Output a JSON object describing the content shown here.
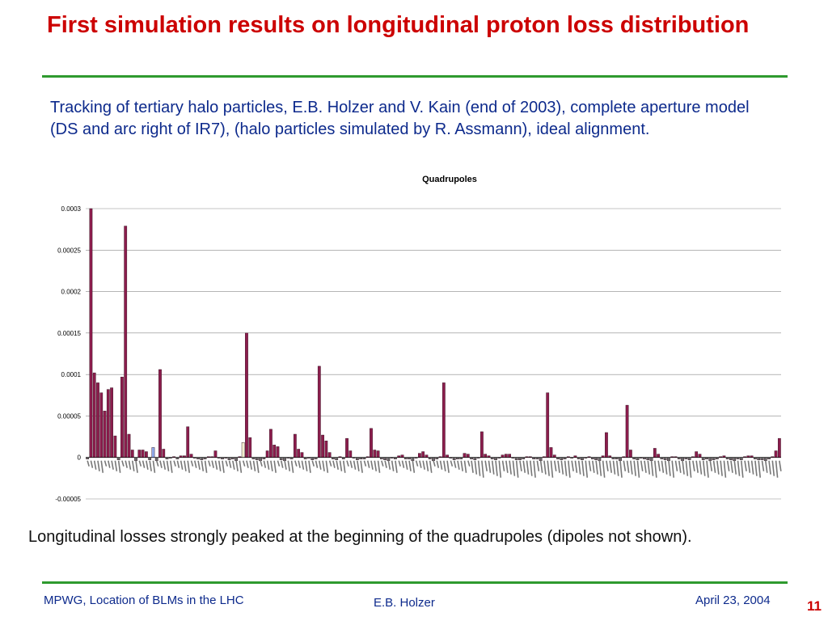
{
  "slide": {
    "title": "First simulation results on longitudinal proton loss distribution",
    "subtitle": "Tracking of tertiary halo particles, E.B. Holzer and V. Kain (end of 2003), complete aperture model (DS and arc right of IR7), (halo particles simulated by R. Assmann), ideal alignment.",
    "caption": "Longitudinal losses strongly peaked at the beginning of the quadrupoles (dipoles not shown).",
    "footer_left": "MPWG, Location of BLMs in the LHC",
    "footer_center": "E.B. Holzer",
    "footer_right": "April 23, 2004",
    "page_number": "11"
  },
  "colors": {
    "title": "#cc0000",
    "text": "#0d2a8c",
    "rule": "#2e9a2e",
    "bar_main": "#8c1d4d",
    "bar_blue": "#8fa8e8",
    "bar_cream": "#f2efcf",
    "bar_neg": "#6b6b6b"
  },
  "chart_data": {
    "type": "bar",
    "title": "Quadrupoles",
    "xlabel": "",
    "ylabel": "",
    "ylim": [
      -5e-05,
      0.0003
    ],
    "yticks": [
      -5e-05,
      0,
      5e-05,
      0.0001,
      0.00015,
      0.0002,
      0.00025,
      0.0003
    ],
    "ytick_labels": [
      "-0.00005",
      "0",
      "0.00005",
      "0.0001",
      "0.00015",
      "0.0002",
      "0.00025",
      "0.0003"
    ],
    "grid": true,
    "legend": "none",
    "xtick_labels": "illegible",
    "values": [
      -2e-06,
      0.0003,
      0.000102,
      9e-05,
      7.8e-05,
      5.6e-05,
      8.2e-05,
      8.4e-05,
      2.6e-05,
      -3e-06,
      9.7e-05,
      0.000279,
      2.8e-05,
      9e-06,
      -4e-06,
      9e-06,
      9e-06,
      7e-06,
      -3e-06,
      1.2e-05,
      -4e-06,
      0.000106,
      1e-05,
      -2e-06,
      -1e-06,
      1e-06,
      -2e-06,
      2e-06,
      2e-06,
      3.7e-05,
      4e-06,
      -1e-06,
      -2e-06,
      -3e-06,
      -2e-06,
      1e-06,
      1e-06,
      8e-06,
      -1e-06,
      -2e-06,
      -1e-06,
      -3e-06,
      -2e-06,
      -4e-06,
      1e-06,
      1.8e-05,
      0.00015,
      2.4e-05,
      -2e-06,
      -3e-06,
      -4e-06,
      -2e-06,
      8e-06,
      3.4e-05,
      1.5e-05,
      1.3e-05,
      -3e-06,
      -4e-06,
      -1e-06,
      -2e-06,
      2.8e-05,
      1e-05,
      6e-06,
      -2e-06,
      -1e-06,
      -3e-06,
      -2e-06,
      0.00011,
      2.7e-05,
      2e-05,
      6e-06,
      -2e-06,
      -3e-06,
      1e-06,
      -2e-06,
      2.3e-05,
      8e-06,
      -1e-06,
      -3e-06,
      -2e-06,
      -2e-06,
      1e-06,
      3.5e-05,
      9e-06,
      8e-06,
      -2e-06,
      -3e-06,
      -4e-06,
      -1e-06,
      -2e-06,
      2e-06,
      3e-06,
      -2e-06,
      -2e-06,
      -4e-06,
      -1e-06,
      5e-06,
      7e-06,
      3e-06,
      -2e-06,
      -4e-06,
      -2e-06,
      1e-06,
      9e-05,
      3e-06,
      -1e-06,
      -3e-06,
      -2e-06,
      -2e-06,
      5e-06,
      4e-06,
      -2e-06,
      -3e-06,
      -1e-06,
      3.1e-05,
      4e-06,
      2e-06,
      -2e-06,
      -3e-06,
      -1e-06,
      3e-06,
      4e-06,
      4e-06,
      -1e-06,
      -3e-06,
      -3e-06,
      -2e-06,
      1e-06,
      1e-06,
      -2e-06,
      -2e-06,
      -4e-06,
      1e-06,
      7.8e-05,
      1.2e-05,
      3e-06,
      -2e-06,
      -3e-06,
      -2e-06,
      1e-06,
      -1e-06,
      2e-06,
      -2e-06,
      -3e-06,
      -1e-06,
      1e-06,
      -2e-06,
      -3e-06,
      -4e-06,
      2e-06,
      3e-05,
      2e-06,
      -2e-06,
      -2e-06,
      -4e-06,
      1e-06,
      6.3e-05,
      9e-06,
      -2e-06,
      -3e-06,
      -1e-06,
      -2e-06,
      -3e-06,
      -4e-06,
      1.1e-05,
      4e-06,
      -2e-06,
      -3e-06,
      -4e-06,
      1e-06,
      1e-06,
      -2e-06,
      -4e-06,
      -2e-06,
      -3e-06,
      1e-06,
      7e-06,
      4e-06,
      -3e-06,
      -2e-06,
      -4e-06,
      -3e-06,
      -2e-06,
      1e-06,
      2e-06,
      -2e-06,
      -3e-06,
      -4e-06,
      -2e-06,
      -3e-06,
      1e-06,
      2e-06,
      2e-06,
      -2e-06,
      -3e-06,
      -3e-06,
      -4e-06,
      -2e-06,
      1e-06,
      8e-06,
      2.3e-05
    ],
    "highlight": [
      {
        "index": 19,
        "color_key": "bar_blue"
      },
      {
        "index": 45,
        "color_key": "bar_cream"
      }
    ]
  }
}
